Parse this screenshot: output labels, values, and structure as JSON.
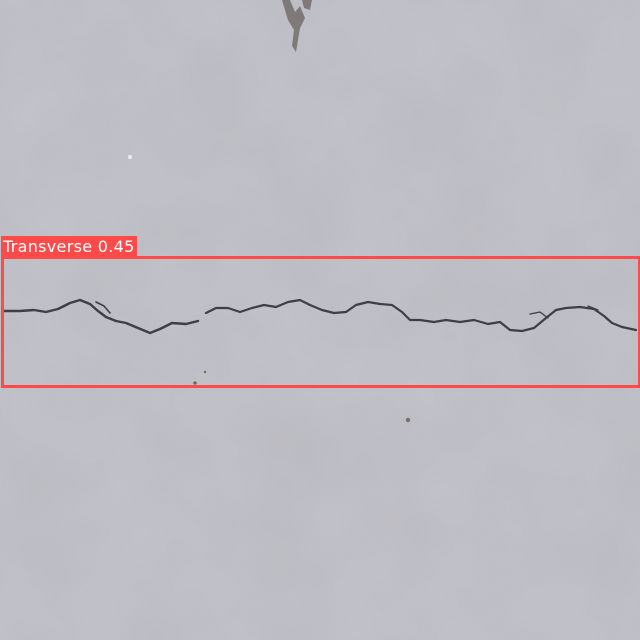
{
  "detections": [
    {
      "label": "Transverse",
      "score": "0.45",
      "box_color": "#ff4a4a"
    }
  ],
  "scene": {
    "surface": "concrete",
    "surface_color": "#b9b9bf"
  }
}
